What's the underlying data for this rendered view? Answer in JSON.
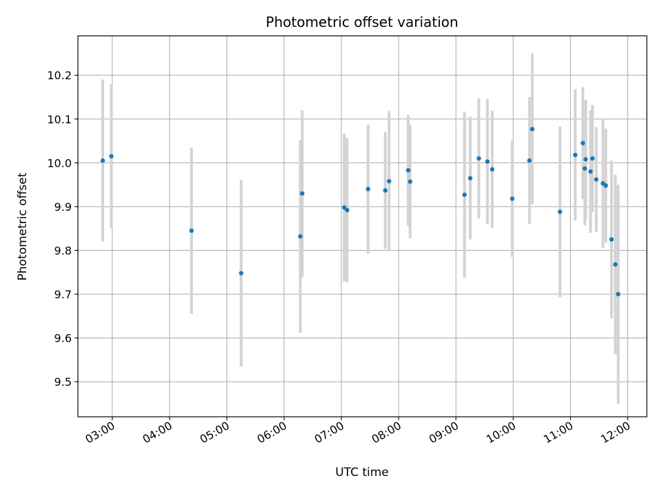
{
  "chart_data": {
    "type": "scatter",
    "title": "Photometric offset variation",
    "xlabel": "UTC time",
    "ylabel": "Photometric offset",
    "x_ticks": [
      "03:00",
      "04:00",
      "05:00",
      "06:00",
      "07:00",
      "08:00",
      "09:00",
      "10:00",
      "11:00",
      "12:00"
    ],
    "y_ticks": [
      "9.5",
      "9.6",
      "9.7",
      "9.8",
      "9.9",
      "10.0",
      "10.1",
      "10.2"
    ],
    "xlim": [
      "02:24",
      "12:20"
    ],
    "ylim": [
      9.42,
      10.29
    ],
    "grid": true,
    "marker_color": "#1f77b4",
    "errorbar_color": "#d3d3d3",
    "points": [
      {
        "x": "02:50",
        "y": 10.005,
        "yerr": 0.185
      },
      {
        "x": "02:59",
        "y": 10.015,
        "yerr": 0.165
      },
      {
        "x": "04:23",
        "y": 9.845,
        "yerr": 0.19
      },
      {
        "x": "05:15",
        "y": 9.748,
        "yerr": 0.213
      },
      {
        "x": "06:17",
        "y": 9.832,
        "yerr": 0.22
      },
      {
        "x": "06:19",
        "y": 9.93,
        "yerr": 0.19
      },
      {
        "x": "07:03",
        "y": 9.898,
        "yerr": 0.168
      },
      {
        "x": "07:06",
        "y": 9.892,
        "yerr": 0.165
      },
      {
        "x": "07:28",
        "y": 9.94,
        "yerr": 0.147
      },
      {
        "x": "07:46",
        "y": 9.937,
        "yerr": 0.134
      },
      {
        "x": "07:50",
        "y": 9.958,
        "yerr": 0.16
      },
      {
        "x": "08:10",
        "y": 9.983,
        "yerr": 0.126
      },
      {
        "x": "08:12",
        "y": 9.957,
        "yerr": 0.13
      },
      {
        "x": "09:09",
        "y": 9.927,
        "yerr": 0.19
      },
      {
        "x": "09:15",
        "y": 9.965,
        "yerr": 0.14
      },
      {
        "x": "09:24",
        "y": 10.01,
        "yerr": 0.137
      },
      {
        "x": "09:33",
        "y": 10.003,
        "yerr": 0.143
      },
      {
        "x": "09:38",
        "y": 9.985,
        "yerr": 0.134
      },
      {
        "x": "09:59",
        "y": 9.918,
        "yerr": 0.133
      },
      {
        "x": "10:17",
        "y": 10.005,
        "yerr": 0.145
      },
      {
        "x": "10:20",
        "y": 10.077,
        "yerr": 0.172
      },
      {
        "x": "10:49",
        "y": 9.888,
        "yerr": 0.195
      },
      {
        "x": "11:05",
        "y": 10.018,
        "yerr": 0.15
      },
      {
        "x": "11:13",
        "y": 10.045,
        "yerr": 0.128
      },
      {
        "x": "11:15",
        "y": 9.987,
        "yerr": 0.13
      },
      {
        "x": "11:16",
        "y": 10.008,
        "yerr": 0.136
      },
      {
        "x": "11:21",
        "y": 9.98,
        "yerr": 0.14
      },
      {
        "x": "11:23",
        "y": 10.01,
        "yerr": 0.122
      },
      {
        "x": "11:27",
        "y": 9.962,
        "yerr": 0.12
      },
      {
        "x": "11:34",
        "y": 9.953,
        "yerr": 0.148
      },
      {
        "x": "11:37",
        "y": 9.948,
        "yerr": 0.13
      },
      {
        "x": "11:43",
        "y": 9.825,
        "yerr": 0.18
      },
      {
        "x": "11:47",
        "y": 9.768,
        "yerr": 0.205
      },
      {
        "x": "11:50",
        "y": 9.7,
        "yerr": 0.25
      }
    ]
  }
}
